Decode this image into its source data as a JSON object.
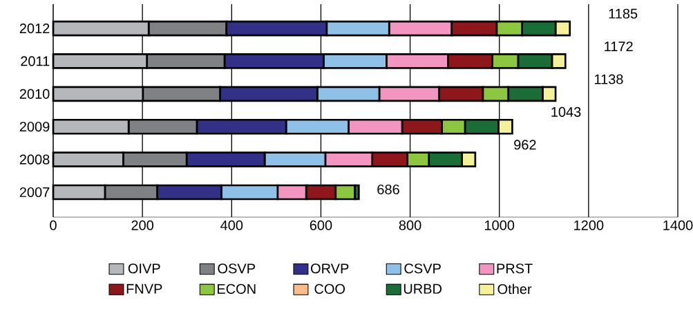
{
  "chart_data": {
    "type": "bar",
    "orientation": "horizontal",
    "stacked": true,
    "categories": [
      "2012",
      "2011",
      "2010",
      "2009",
      "2008",
      "2007"
    ],
    "series": [
      {
        "name": "OIVP",
        "color": "#b6b7bb",
        "values": [
          214,
          210,
          201,
          169,
          157,
          116
        ]
      },
      {
        "name": "OSVP",
        "color": "#808185",
        "values": [
          174,
          174,
          173,
          153,
          142,
          117
        ]
      },
      {
        "name": "ORVP",
        "color": "#333087",
        "values": [
          225,
          222,
          218,
          200,
          175,
          144
        ]
      },
      {
        "name": "CSVP",
        "color": "#8fc0e8",
        "values": [
          140,
          141,
          139,
          140,
          136,
          126
        ]
      },
      {
        "name": "PRST",
        "color": "#f395c1",
        "values": [
          140,
          138,
          134,
          120,
          105,
          64
        ]
      },
      {
        "name": "FNVP",
        "color": "#8e171c",
        "values": [
          101,
          99,
          98,
          89,
          79,
          66
        ]
      },
      {
        "name": "ECON",
        "color": "#8dc641",
        "values": [
          57,
          58,
          57,
          52,
          48,
          43
        ]
      },
      {
        "name": "COO",
        "color": "#fbbc8c",
        "values": [
          0,
          0,
          0,
          0,
          0,
          0
        ]
      },
      {
        "name": "URBD",
        "color": "#1b6d37",
        "values": [
          75,
          76,
          77,
          75,
          74,
          9
        ]
      },
      {
        "name": "Other",
        "color": "#f5f19a",
        "values": [
          32,
          30,
          29,
          31,
          30,
          0
        ]
      }
    ],
    "annotations": [
      "1185",
      "1172",
      "1138",
      "1043",
      "962",
      "686"
    ],
    "xlim": [
      0,
      1400
    ],
    "xticks": [
      0,
      200,
      400,
      600,
      800,
      1000,
      1200,
      1400
    ],
    "grid": "x",
    "legend": "bottom"
  }
}
